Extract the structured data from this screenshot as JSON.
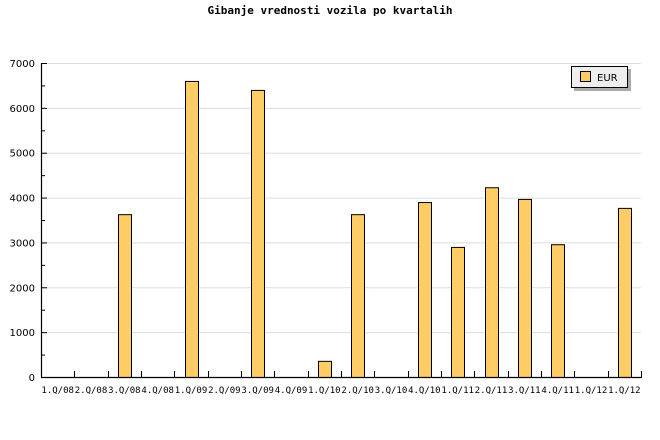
{
  "chart_data": {
    "type": "bar",
    "title": "Gibanje vrednosti vozila po kvartalih",
    "xlabel": "",
    "ylabel": "",
    "ylim": [
      0,
      7000
    ],
    "yticks": [
      "0",
      "1000",
      "2000",
      "3000",
      "4000",
      "5000",
      "6000",
      "7000"
    ],
    "grid": true,
    "legend_position": "top-right",
    "categories": [
      "1.Q/08",
      "2.Q/08",
      "3.Q/08",
      "4.Q/08",
      "1.Q/09",
      "2.Q/09",
      "3.Q/09",
      "4.Q/09",
      "1.Q/10",
      "2.Q/10",
      "3.Q/10",
      "4.Q/10",
      "1.Q/11",
      "2.Q/11",
      "3.Q/11",
      "4.Q/11",
      "1.Q/12",
      "1.Q/12"
    ],
    "series": [
      {
        "name": "EUR",
        "color": "#ffcc66",
        "values": [
          0,
          0,
          3630,
          0,
          6600,
          0,
          6400,
          0,
          360,
          3630,
          0,
          3900,
          2900,
          4230,
          3970,
          2960,
          0,
          3770
        ]
      }
    ]
  }
}
